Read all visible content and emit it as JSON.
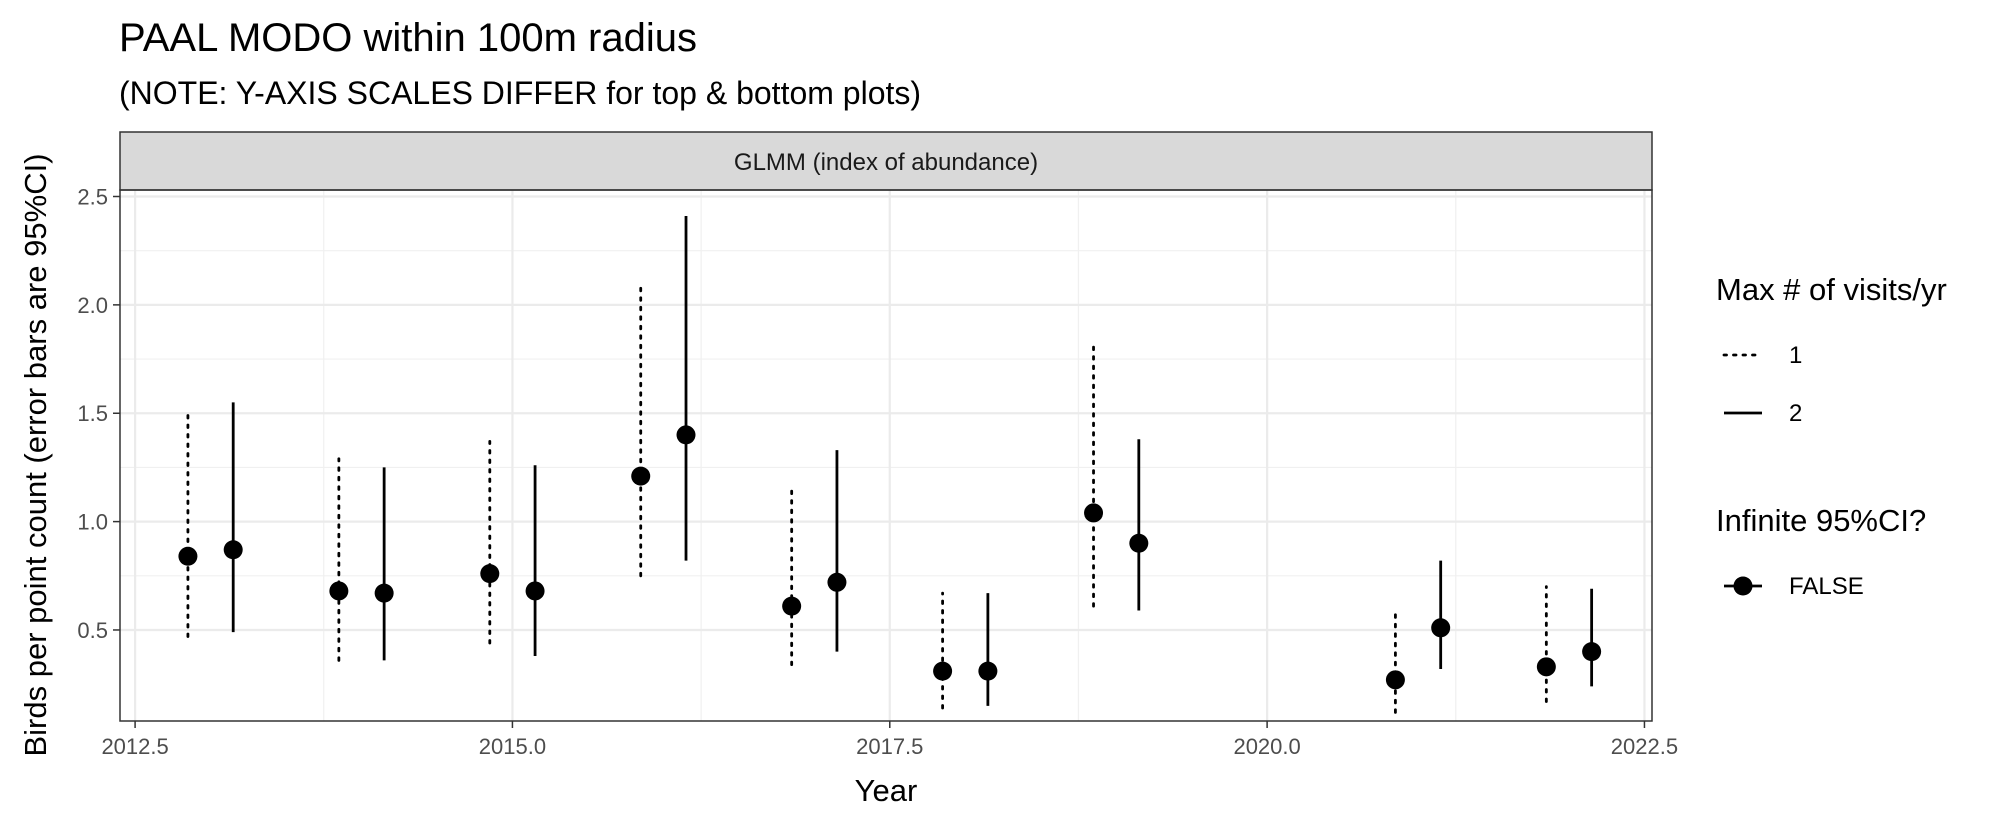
{
  "chart_data": {
    "type": "scatter",
    "title": "PAAL MODO within 100m radius",
    "subtitle": "(NOTE: Y-AXIS SCALES DIFFER for top & bottom plots)",
    "facet_label": "GLMM (index of abundance)",
    "xlabel": "Year",
    "ylabel": "Birds per point count (error bars are 95%CI)",
    "xlim": [
      2012.4,
      2022.55
    ],
    "ylim": [
      0.08,
      2.53
    ],
    "x_ticks": [
      "2012.5",
      "2015.0",
      "2017.5",
      "2020.0",
      "2022.5"
    ],
    "y_ticks": [
      "0.5",
      "1.0",
      "1.5",
      "2.0",
      "2.5"
    ],
    "grid": true,
    "legend_position": "right",
    "series": [
      {
        "name": "1",
        "line_style": "dotted",
        "points": [
          {
            "x": 2013,
            "y": 0.84,
            "lo": 0.47,
            "hi": 1.51
          },
          {
            "x": 2014,
            "y": 0.68,
            "lo": 0.36,
            "hi": 1.29
          },
          {
            "x": 2015,
            "y": 0.76,
            "lo": 0.44,
            "hi": 1.37
          },
          {
            "x": 2016,
            "y": 1.21,
            "lo": 0.75,
            "hi": 2.08
          },
          {
            "x": 2017,
            "y": 0.61,
            "lo": 0.34,
            "hi": 1.16
          },
          {
            "x": 2018,
            "y": 0.31,
            "lo": 0.14,
            "hi": 0.67
          },
          {
            "x": 2019,
            "y": 1.04,
            "lo": 0.61,
            "hi": 1.82
          },
          {
            "x": 2021,
            "y": 0.27,
            "lo": 0.12,
            "hi": 0.6
          },
          {
            "x": 2022,
            "y": 0.33,
            "lo": 0.17,
            "hi": 0.7
          }
        ]
      },
      {
        "name": "2",
        "line_style": "solid",
        "points": [
          {
            "x": 2013,
            "y": 0.87,
            "lo": 0.49,
            "hi": 1.55
          },
          {
            "x": 2014,
            "y": 0.67,
            "lo": 0.36,
            "hi": 1.25
          },
          {
            "x": 2015,
            "y": 0.68,
            "lo": 0.38,
            "hi": 1.26
          },
          {
            "x": 2016,
            "y": 1.4,
            "lo": 0.82,
            "hi": 2.41
          },
          {
            "x": 2017,
            "y": 0.72,
            "lo": 0.4,
            "hi": 1.33
          },
          {
            "x": 2018,
            "y": 0.31,
            "lo": 0.15,
            "hi": 0.67
          },
          {
            "x": 2019,
            "y": 0.9,
            "lo": 0.59,
            "hi": 1.38
          },
          {
            "x": 2021,
            "y": 0.51,
            "lo": 0.32,
            "hi": 0.82
          },
          {
            "x": 2022,
            "y": 0.4,
            "lo": 0.24,
            "hi": 0.69
          }
        ]
      }
    ],
    "legends": [
      {
        "title": "Max # of visits/yr",
        "items": [
          {
            "label": "1",
            "line_style": "dotted"
          },
          {
            "label": "2",
            "line_style": "solid"
          }
        ]
      },
      {
        "title": "Infinite 95%CI?",
        "items": [
          {
            "label": "FALSE",
            "marker": "point"
          }
        ]
      }
    ]
  }
}
